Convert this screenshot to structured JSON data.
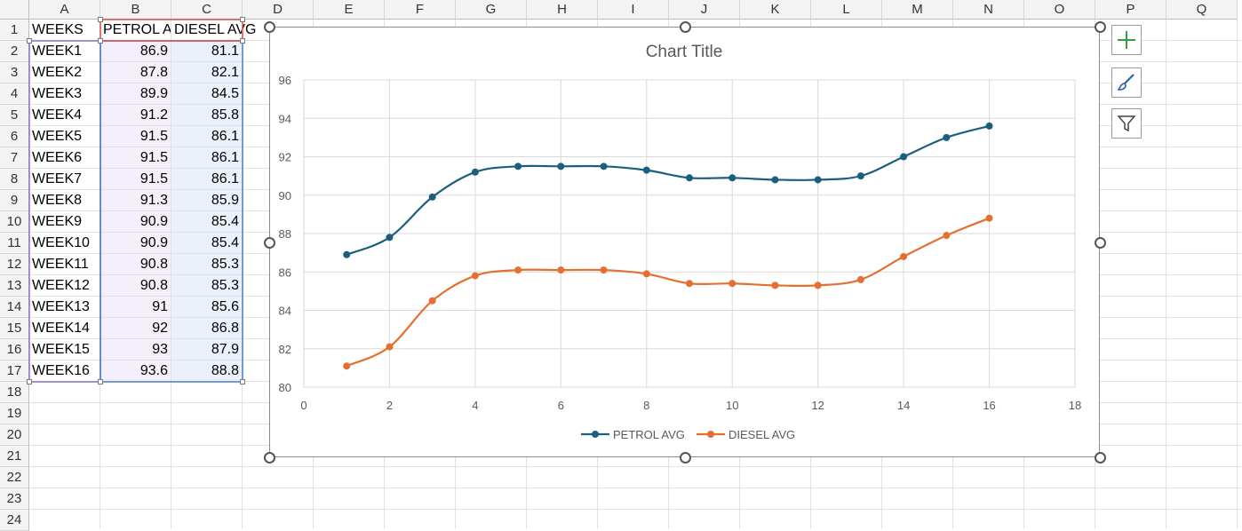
{
  "columns": [
    "A",
    "B",
    "C",
    "D",
    "E",
    "F",
    "G",
    "H",
    "I",
    "J",
    "K",
    "L",
    "M",
    "N",
    "O",
    "P",
    "Q"
  ],
  "rows": [
    "1",
    "2",
    "3",
    "4",
    "5",
    "6",
    "7",
    "8",
    "9",
    "10",
    "11",
    "12",
    "13",
    "14",
    "15",
    "16",
    "17",
    "18",
    "19",
    "20",
    "21",
    "22",
    "23",
    "24"
  ],
  "table": {
    "headers": [
      "WEEKS",
      "PETROL AVG",
      "DIESEL AVG"
    ],
    "header_display": [
      "WEEKS",
      "PETROL AV",
      "DIESEL AVG"
    ],
    "rows": [
      [
        "WEEK1",
        "86.9",
        "81.1"
      ],
      [
        "WEEK2",
        "87.8",
        "82.1"
      ],
      [
        "WEEK3",
        "89.9",
        "84.5"
      ],
      [
        "WEEK4",
        "91.2",
        "85.8"
      ],
      [
        "WEEK5",
        "91.5",
        "86.1"
      ],
      [
        "WEEK6",
        "91.5",
        "86.1"
      ],
      [
        "WEEK7",
        "91.5",
        "86.1"
      ],
      [
        "WEEK8",
        "91.3",
        "85.9"
      ],
      [
        "WEEK9",
        "90.9",
        "85.4"
      ],
      [
        "WEEK10",
        "90.9",
        "85.4"
      ],
      [
        "WEEK11",
        "90.8",
        "85.3"
      ],
      [
        "WEEK12",
        "90.8",
        "85.3"
      ],
      [
        "WEEK13",
        "91",
        "85.6"
      ],
      [
        "WEEK14",
        "92",
        "86.8"
      ],
      [
        "WEEK15",
        "93",
        "87.9"
      ],
      [
        "WEEK16",
        "93.6",
        "88.8"
      ]
    ]
  },
  "chart_data": {
    "type": "scatter",
    "title": "Chart Title",
    "xlabel": "",
    "ylabel": "",
    "xlim": [
      0,
      18
    ],
    "ylim": [
      80,
      96
    ],
    "xticks": [
      "0",
      "2",
      "4",
      "6",
      "8",
      "10",
      "12",
      "14",
      "16",
      "18"
    ],
    "yticks": [
      "80",
      "82",
      "84",
      "86",
      "88",
      "90",
      "92",
      "94",
      "96"
    ],
    "grid": true,
    "legend": "bottom",
    "x": [
      1,
      2,
      3,
      4,
      5,
      6,
      7,
      8,
      9,
      10,
      11,
      12,
      13,
      14,
      15,
      16
    ],
    "series": [
      {
        "name": "PETROL AVG",
        "color": "#1b5f7e",
        "values": [
          86.9,
          87.8,
          89.9,
          91.2,
          91.5,
          91.5,
          91.5,
          91.3,
          90.9,
          90.9,
          90.8,
          90.8,
          91,
          92,
          93,
          93.6
        ]
      },
      {
        "name": "DIESEL AVG",
        "color": "#e46f2f",
        "values": [
          81.1,
          82.1,
          84.5,
          85.8,
          86.1,
          86.1,
          86.1,
          85.9,
          85.4,
          85.4,
          85.3,
          85.3,
          85.6,
          86.8,
          87.9,
          88.8
        ]
      }
    ]
  },
  "chart_buttons": [
    {
      "name": "chart-elements-button",
      "icon": "plus-icon"
    },
    {
      "name": "chart-styles-button",
      "icon": "brush-icon"
    },
    {
      "name": "chart-filters-button",
      "icon": "filter-icon"
    }
  ],
  "colors": {
    "petrol_range": "#8f6fd6",
    "diesel_range": "#4a7fd0",
    "header_range": "#e04a4a"
  }
}
